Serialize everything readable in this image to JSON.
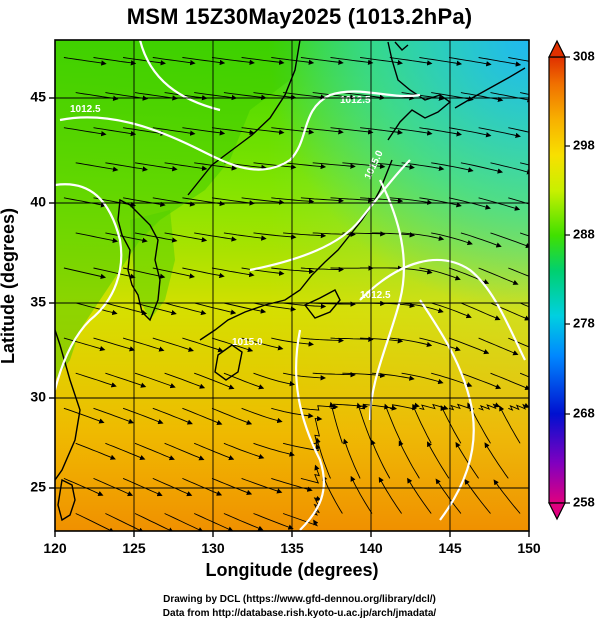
{
  "title": "MSM 15Z30May2025 (1013.2hPa)",
  "xlabel": "Longitude (degrees)",
  "ylabel": "Latitude (degrees)",
  "credits": [
    "Drawing by DCL (https://www.gfd-dennou.org/library/dcl/)",
    "Data from http://database.rish.kyoto-u.ac.jp/arch/jmadata/"
  ],
  "chart_data": {
    "type": "heatmap",
    "x_ticks": [
      "120",
      "125",
      "130",
      "135",
      "140",
      "145",
      "150"
    ],
    "y_ticks": [
      "25",
      "30",
      "35",
      "40",
      "45"
    ],
    "xlim": [
      120,
      150
    ],
    "ylim": [
      22.5,
      47.6
    ],
    "colorbar": {
      "min": 258,
      "max": 308,
      "ticks": [
        "308",
        "298",
        "288",
        "278",
        "268",
        "258"
      ],
      "colors": [
        "#e0007f",
        "#8000c0",
        "#0010d0",
        "#0088ff",
        "#00d0e0",
        "#00e070",
        "#40e000",
        "#b8f000",
        "#f8e000",
        "#f8b000",
        "#f07800",
        "#e03000"
      ]
    },
    "contour_labels": [
      "1012.5",
      "1015.0",
      "1012.5",
      "1012.5",
      "1015.0"
    ],
    "grid": true,
    "features": [
      "temperature shading",
      "isobars",
      "streamlines",
      "coastlines"
    ]
  }
}
